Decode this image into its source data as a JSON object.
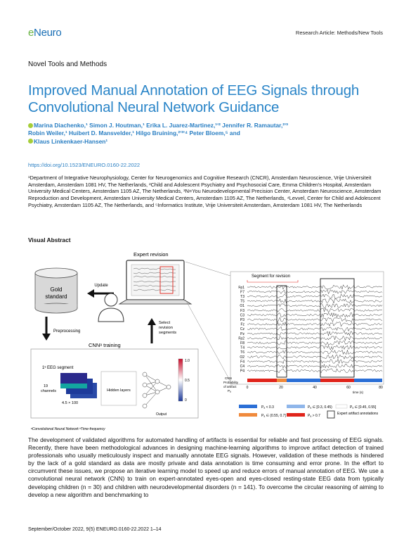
{
  "journal": {
    "logo_prefix": "e",
    "logo_main": "Neuro",
    "running_head": "Research Article: Methods/New Tools"
  },
  "section": "Novel Tools and Methods",
  "title": "Improved Manual Annotation of EEG Signals through Convolutional Neural Network Guidance",
  "authors_line1": "Marina Diachenko,¹ Simon J. Houtman,¹ Erika L. Juarez-Martinez,¹ʹ² Jennifer R. Ramautar,²ʹ³",
  "authors_line2": "Robin Weiler,¹ Huibert D. Mansvelder,¹ Hilgo Bruining,²ʹ³ʹ⁴ Peter Bloem,⁵ and",
  "authors_line3": "Klaus Linkenkaer-Hansen¹",
  "doi": "https://doi.org/10.1523/ENEURO.0160-22.2022",
  "affiliations": "¹Department of Integrative Neurophysiology, Center for Neurogenomics and Cognitive Research (CNCR), Amsterdam Neuroscience, Vrije Universiteit Amsterdam, Amsterdam 1081 HV, The Netherlands, ²Child and Adolescent Psychiatry and Psychosocial Care, Emma Children's Hospital, Amsterdam University Medical Centers, Amsterdam 1105 AZ, The Netherlands, ³N=You Neurodevelopmental Precision Center, Amsterdam Neuroscience, Amsterdam Reproduction and Development, Amsterdam University Medical Centers, Amsterdam 1105 AZ, The Netherlands, ⁴Levvel, Center for Child and Adolescent Psychiatry, Amsterdam 1105 AZ, The Netherlands, and ⁵Informatics Institute, Vrije Universiteit Amsterdam, Amsterdam 1081 HV, The Netherlands",
  "visual_abstract_heading": "Visual Abstract",
  "figure": {
    "gold_standard": [
      "Gold",
      "standard"
    ],
    "update": "Update",
    "expert_revision": "Expert revision",
    "preprocessing": "Preprocessing",
    "select_revision": [
      "Select",
      "revision",
      "segments"
    ],
    "cnn_training": "CNNᵃ training",
    "eeg_segment": "1ˢ EEG segment",
    "channels": [
      "19",
      "channels"
    ],
    "dims": "4.5 × 100",
    "hidden_layers": "Hidden layers",
    "output": "Output",
    "colorbar_ticks": [
      "1.0",
      "0.5",
      "0"
    ],
    "segment_for_revision": "Segment for revision",
    "channel_labels": [
      "Fp1",
      "F7",
      "T3",
      "T5",
      "O1",
      "F3",
      "C3",
      "P3",
      "Fz",
      "Cz",
      "Pz",
      "Fp2",
      "F8",
      "T4",
      "T6",
      "O2",
      "F4",
      "C4",
      "P4"
    ],
    "cnn_prob_label": [
      "CNN",
      "Probability",
      "of artifact",
      "Pₐ"
    ],
    "time_ticks": [
      "0",
      "20",
      "40",
      "60",
      "80"
    ],
    "time_label": "time (s)",
    "legend": [
      "Pₐ < 0.3",
      "Pₐ ∈ [0.3, 0.45)",
      "Pₐ ∈ [0.45, 0.55]",
      "Pₐ ∈ (0.55, 0.7]",
      "Pₐ > 0.7",
      "Expert artifact annotations"
    ],
    "footnote": "ᵃConvolutional Neural Network   ᵇTime-frequency"
  },
  "abstract": "The development of validated algorithms for automated handling of artifacts is essential for reliable and fast processing of EEG signals. Recently, there have been methodological advances in designing machine-learning algorithms to improve artifact detection of trained professionals who usually meticulously inspect and manually annotate EEG signals. However, validation of these methods is hindered by the lack of a gold standard as data are mostly private and data annotation is time consuming and error prone. In the effort to circumvent these issues, we propose an iterative learning model to speed up and reduce errors of manual annotation of EEG. We use a convolutional neural network (CNN) to train on expert-annotated eyes-open and eyes-closed resting-state EEG data from typically developing children (n = 30) and children with neurodevelopmental disorders (n = 141). To overcome the circular reasoning of aiming to develop a new algorithm and benchmarking to",
  "footer": "September/October 2022, 9(5) ENEURO.0160-22.2022 1–14",
  "colors": {
    "accent": "#2a85c8",
    "orcid": "#a6ce39",
    "blue": "#2b6fd6",
    "lightblue": "#8fb6ea",
    "orange": "#f08a3c",
    "red": "#e0241b"
  }
}
